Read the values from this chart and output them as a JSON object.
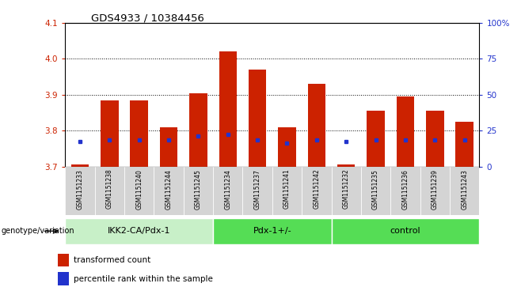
{
  "title": "GDS4933 / 10384456",
  "samples": [
    "GSM1151233",
    "GSM1151238",
    "GSM1151240",
    "GSM1151244",
    "GSM1151245",
    "GSM1151234",
    "GSM1151237",
    "GSM1151241",
    "GSM1151242",
    "GSM1151232",
    "GSM1151235",
    "GSM1151236",
    "GSM1151239",
    "GSM1151243"
  ],
  "bar_values": [
    3.705,
    3.885,
    3.885,
    3.81,
    3.905,
    4.02,
    3.97,
    3.81,
    3.93,
    3.705,
    3.855,
    3.895,
    3.855,
    3.825
  ],
  "dot_values": [
    3.77,
    3.775,
    3.775,
    3.775,
    3.785,
    3.79,
    3.775,
    3.765,
    3.775,
    3.77,
    3.775,
    3.775,
    3.775,
    3.775
  ],
  "ylim_left": [
    3.7,
    4.1
  ],
  "ylim_right": [
    0,
    100
  ],
  "yticks_left": [
    3.7,
    3.8,
    3.9,
    4.0,
    4.1
  ],
  "yticks_right": [
    0,
    25,
    50,
    75,
    100
  ],
  "ytick_labels_right": [
    "0",
    "25",
    "50",
    "75",
    "100%"
  ],
  "bar_color": "#cc2200",
  "dot_color": "#2233cc",
  "groups": [
    {
      "label": "IKK2-CA/Pdx-1",
      "n": 5,
      "color": "#c8f0c8"
    },
    {
      "label": "Pdx-1+/-",
      "n": 4,
      "color": "#55dd55"
    },
    {
      "label": "control",
      "n": 5,
      "color": "#55dd55"
    }
  ],
  "legend_bar_label": "transformed count",
  "legend_dot_label": "percentile rank within the sample",
  "genotype_label": "genotype/variation"
}
